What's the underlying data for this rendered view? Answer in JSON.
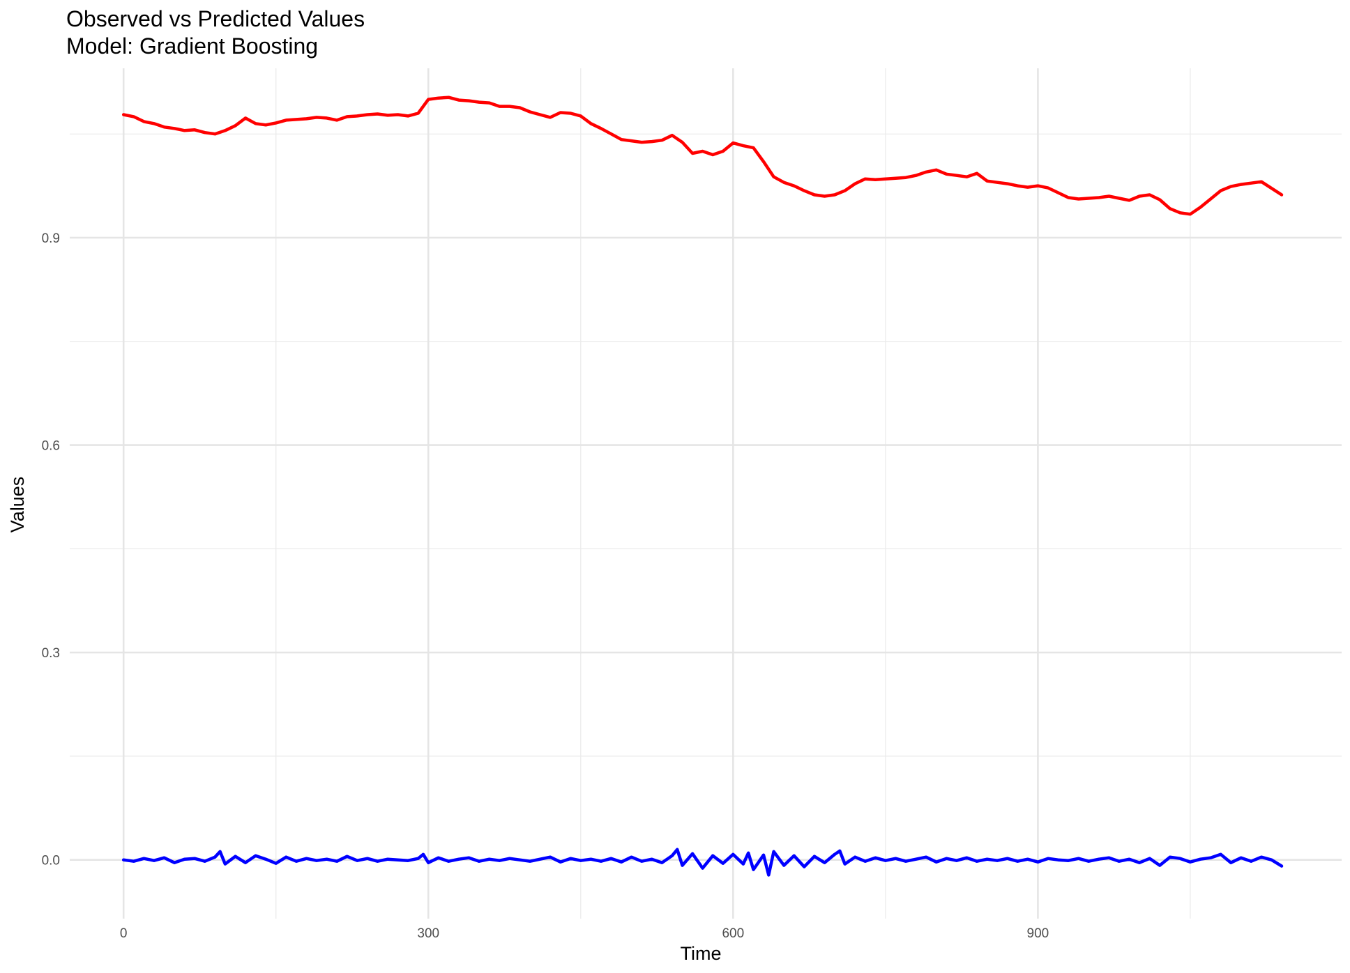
{
  "chart_data": {
    "type": "line",
    "title": "Observed vs Predicted Values",
    "subtitle": "Model: Gradient Boosting",
    "xlabel": "Time",
    "ylabel": "Values",
    "xlim": [
      -53,
      1199
    ],
    "ylim": [
      -0.085,
      1.145
    ],
    "x_ticks": [
      0,
      300,
      600,
      900
    ],
    "x_tick_labels": [
      "0",
      "300",
      "600",
      "900"
    ],
    "x_minor_ticks": [
      150,
      450,
      750,
      1050
    ],
    "y_ticks": [
      0.0,
      0.3,
      0.6,
      0.9
    ],
    "y_tick_labels": [
      "0.0",
      "0.3",
      "0.6",
      "0.9"
    ],
    "y_minor_ticks": [
      0.15,
      0.45,
      0.75,
      1.05
    ],
    "grid": true,
    "legend": "none",
    "series": [
      {
        "color": "#ff0000",
        "x": [
          0,
          10,
          20,
          30,
          40,
          50,
          60,
          70,
          80,
          90,
          100,
          110,
          120,
          130,
          140,
          150,
          160,
          170,
          180,
          190,
          200,
          210,
          220,
          230,
          240,
          250,
          260,
          270,
          280,
          290,
          300,
          310,
          320,
          330,
          340,
          350,
          360,
          370,
          380,
          390,
          400,
          410,
          420,
          430,
          440,
          450,
          460,
          470,
          480,
          490,
          500,
          510,
          520,
          530,
          540,
          550,
          560,
          570,
          580,
          590,
          600,
          610,
          620,
          630,
          640,
          650,
          660,
          670,
          680,
          690,
          700,
          710,
          720,
          730,
          740,
          750,
          760,
          770,
          780,
          790,
          800,
          810,
          820,
          830,
          840,
          850,
          860,
          870,
          880,
          890,
          900,
          910,
          920,
          930,
          940,
          950,
          960,
          970,
          980,
          990,
          1000,
          1010,
          1020,
          1030,
          1040,
          1050,
          1060,
          1070,
          1080,
          1090,
          1100,
          1110,
          1120,
          1140
        ],
        "y": [
          1.078,
          1.075,
          1.068,
          1.065,
          1.06,
          1.058,
          1.055,
          1.056,
          1.052,
          1.05,
          1.055,
          1.062,
          1.073,
          1.065,
          1.063,
          1.066,
          1.07,
          1.071,
          1.072,
          1.074,
          1.073,
          1.07,
          1.075,
          1.076,
          1.078,
          1.079,
          1.077,
          1.078,
          1.076,
          1.08,
          1.1,
          1.102,
          1.103,
          1.099,
          1.098,
          1.096,
          1.095,
          1.09,
          1.09,
          1.088,
          1.082,
          1.078,
          1.074,
          1.081,
          1.08,
          1.076,
          1.065,
          1.058,
          1.05,
          1.042,
          1.04,
          1.038,
          1.039,
          1.041,
          1.048,
          1.038,
          1.022,
          1.025,
          1.02,
          1.025,
          1.037,
          1.033,
          1.03,
          1.01,
          0.988,
          0.98,
          0.975,
          0.968,
          0.962,
          0.96,
          0.962,
          0.968,
          0.978,
          0.985,
          0.984,
          0.985,
          0.986,
          0.987,
          0.99,
          0.995,
          0.998,
          0.992,
          0.99,
          0.988,
          0.993,
          0.982,
          0.98,
          0.978,
          0.975,
          0.973,
          0.975,
          0.972,
          0.965,
          0.958,
          0.956,
          0.957,
          0.958,
          0.96,
          0.957,
          0.954,
          0.96,
          0.962,
          0.955,
          0.942,
          0.936,
          0.934,
          0.944,
          0.956,
          0.968,
          0.974,
          0.977,
          0.979,
          0.981,
          0.962
        ]
      },
      {
        "color": "#0000ff",
        "x": [
          0,
          10,
          20,
          30,
          40,
          50,
          60,
          70,
          80,
          90,
          95,
          100,
          110,
          120,
          130,
          140,
          150,
          160,
          170,
          180,
          190,
          200,
          210,
          220,
          230,
          240,
          250,
          260,
          270,
          280,
          290,
          295,
          300,
          310,
          320,
          330,
          340,
          350,
          360,
          370,
          380,
          390,
          400,
          410,
          420,
          430,
          440,
          450,
          460,
          470,
          480,
          490,
          500,
          510,
          520,
          530,
          540,
          545,
          550,
          560,
          570,
          580,
          590,
          600,
          610,
          615,
          620,
          630,
          635,
          640,
          650,
          660,
          670,
          680,
          690,
          700,
          705,
          710,
          720,
          730,
          740,
          750,
          760,
          770,
          780,
          790,
          800,
          810,
          820,
          830,
          840,
          850,
          860,
          870,
          880,
          890,
          900,
          910,
          920,
          930,
          940,
          950,
          960,
          970,
          980,
          990,
          1000,
          1010,
          1020,
          1030,
          1040,
          1050,
          1060,
          1070,
          1080,
          1090,
          1100,
          1110,
          1120,
          1130,
          1140
        ],
        "y": [
          0.0,
          -0.002,
          0.002,
          -0.001,
          0.003,
          -0.004,
          0.001,
          0.002,
          -0.002,
          0.004,
          0.012,
          -0.006,
          0.005,
          -0.004,
          0.006,
          0.001,
          -0.005,
          0.004,
          -0.002,
          0.002,
          -0.001,
          0.001,
          -0.002,
          0.005,
          -0.001,
          0.002,
          -0.002,
          0.001,
          0.0,
          -0.001,
          0.002,
          0.008,
          -0.004,
          0.003,
          -0.002,
          0.001,
          0.003,
          -0.002,
          0.001,
          -0.001,
          0.002,
          0.0,
          -0.002,
          0.001,
          0.004,
          -0.003,
          0.002,
          -0.001,
          0.001,
          -0.002,
          0.002,
          -0.003,
          0.004,
          -0.002,
          0.001,
          -0.004,
          0.006,
          0.015,
          -0.008,
          0.009,
          -0.012,
          0.006,
          -0.005,
          0.008,
          -0.006,
          0.01,
          -0.014,
          0.007,
          -0.022,
          0.012,
          -0.008,
          0.006,
          -0.01,
          0.005,
          -0.004,
          0.008,
          0.013,
          -0.006,
          0.004,
          -0.002,
          0.003,
          -0.001,
          0.002,
          -0.002,
          0.001,
          0.004,
          -0.003,
          0.002,
          -0.001,
          0.003,
          -0.002,
          0.001,
          -0.001,
          0.002,
          -0.002,
          0.001,
          -0.003,
          0.002,
          0.0,
          -0.001,
          0.002,
          -0.002,
          0.001,
          0.003,
          -0.002,
          0.001,
          -0.004,
          0.002,
          -0.008,
          0.004,
          0.002,
          -0.003,
          0.001,
          0.003,
          0.008,
          -0.004,
          0.003,
          -0.002,
          0.004,
          0.0,
          -0.009
        ]
      }
    ]
  }
}
